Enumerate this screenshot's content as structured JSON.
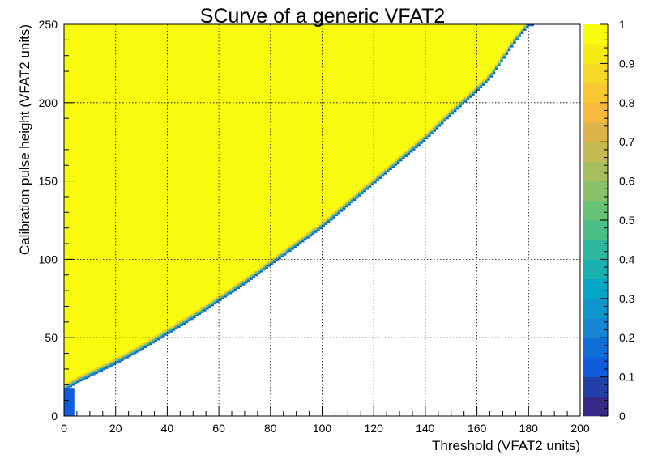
{
  "chart_data": {
    "type": "heatmap",
    "title": "SCurve of a generic VFAT2",
    "xlabel": "Threshold (VFAT2 units)",
    "ylabel": "Calibration pulse height (VFAT2 units)",
    "xlim": [
      0,
      200
    ],
    "ylim": [
      0,
      250
    ],
    "zlim": [
      0,
      1
    ],
    "x_ticks": [
      "0",
      "20",
      "40",
      "60",
      "80",
      "100",
      "120",
      "140",
      "160",
      "180",
      "200"
    ],
    "y_ticks": [
      "0",
      "50",
      "100",
      "150",
      "200",
      "250"
    ],
    "z_ticks": [
      "0",
      "0.1",
      "0.2",
      "0.3",
      "0.4",
      "0.5",
      "0.6",
      "0.7",
      "0.8",
      "0.9",
      "1"
    ],
    "grid": true,
    "colormap": "parula",
    "palette": [
      "#352a87",
      "#2140a8",
      "#0f5cdd",
      "#1170d8",
      "#1584d2",
      "#0f96cc",
      "#06a7c6",
      "#1aafb1",
      "#2eb7a0",
      "#4abf88",
      "#68c276",
      "#89c069",
      "#a8bd5c",
      "#c4ba52",
      "#deb44a",
      "#f6b83d",
      "#f9c832",
      "#f5d924",
      "#f6ec14",
      "#f9fb0e"
    ],
    "transition_curve": {
      "x": [
        0,
        5,
        10,
        20,
        30,
        40,
        50,
        60,
        70,
        80,
        90,
        100,
        110,
        120,
        130,
        140,
        150,
        160,
        165,
        170,
        175,
        180
      ],
      "y": [
        18,
        23,
        27,
        35,
        44,
        54,
        64,
        75,
        86,
        98,
        110,
        122,
        136,
        150,
        164,
        178,
        194,
        209,
        217,
        229,
        241,
        251
      ]
    },
    "transition_width": 2,
    "description_fill": "efficiency = 1 above the transition curve, 0 below"
  }
}
